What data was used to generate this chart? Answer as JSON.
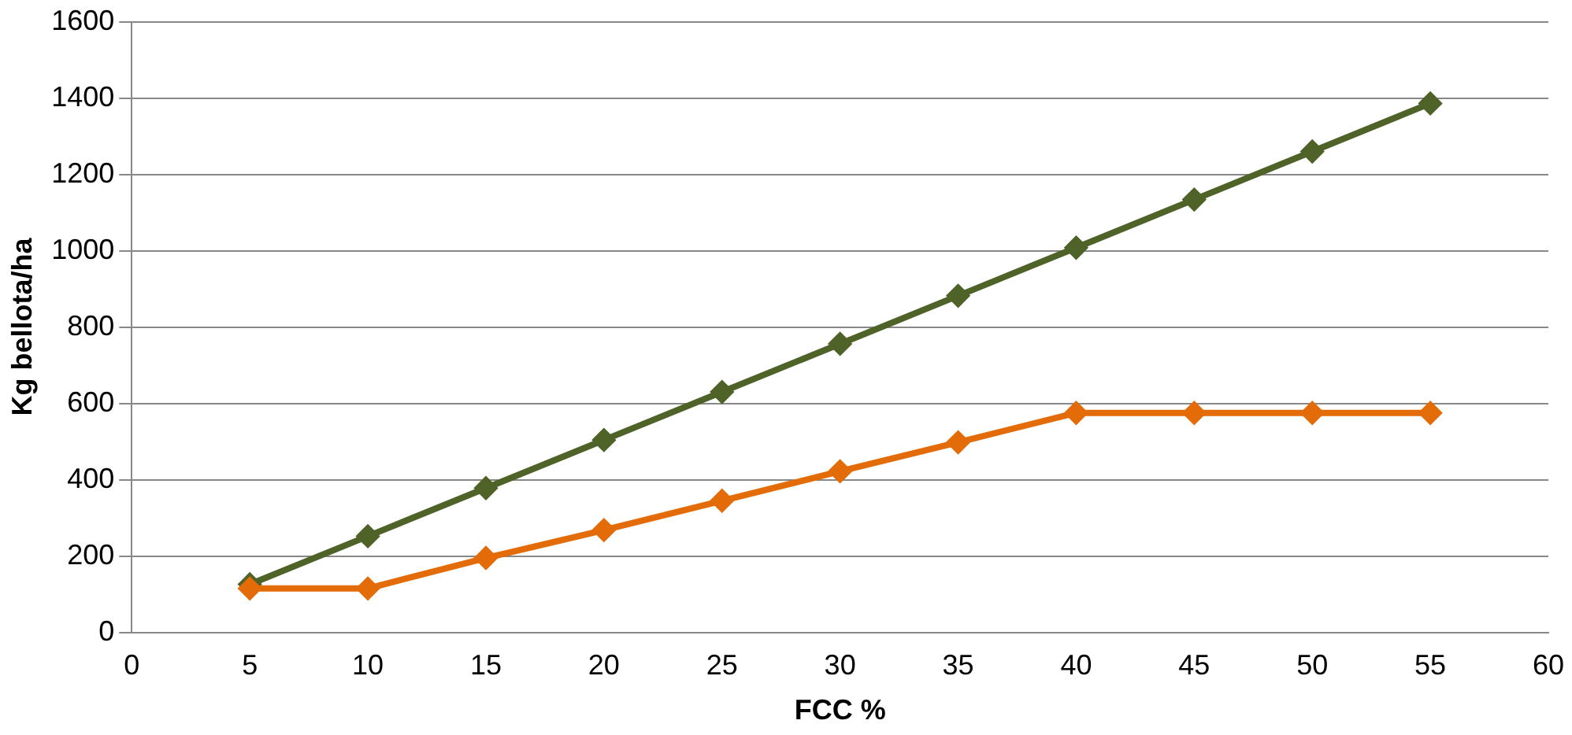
{
  "chart_data": {
    "type": "line",
    "xlabel": "FCC %",
    "ylabel": "Kg bellota/ha",
    "x": [
      5,
      10,
      15,
      20,
      25,
      30,
      35,
      40,
      45,
      50,
      55
    ],
    "series": [
      {
        "color": "#4f6228",
        "values": [
          126,
          252,
          378,
          504,
          630,
          756,
          882,
          1008,
          1134,
          1260,
          1386
        ]
      },
      {
        "color": "#e36c09",
        "values": [
          115,
          115,
          195,
          268,
          345,
          422,
          498,
          575,
          575,
          575,
          575
        ]
      }
    ],
    "xlim": [
      0,
      60
    ],
    "xticks": [
      0,
      5,
      10,
      15,
      20,
      25,
      30,
      35,
      40,
      45,
      50,
      55,
      60
    ],
    "ylim": [
      0,
      1600
    ],
    "yticks": [
      0,
      200,
      400,
      600,
      800,
      1000,
      1200,
      1400,
      1600
    ],
    "grid": "y",
    "legend": false,
    "marker": "diamond",
    "line_style": "solid"
  }
}
